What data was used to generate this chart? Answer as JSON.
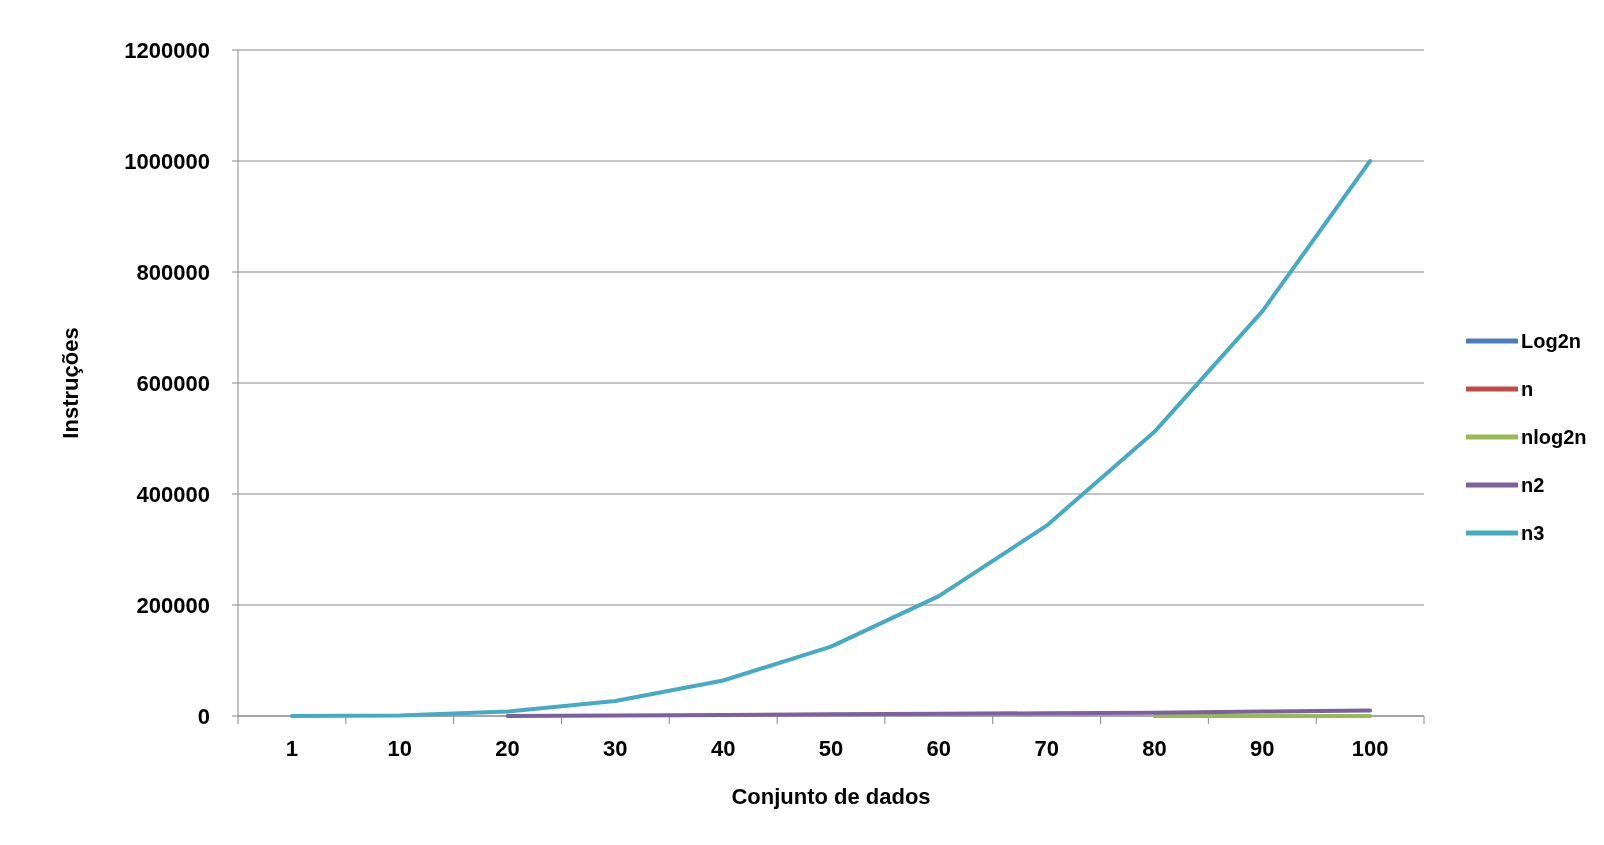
{
  "chart_data": {
    "type": "line",
    "xlabel": "Conjunto de dados",
    "ylabel": "Instruções",
    "categories": [
      "1",
      "10",
      "20",
      "30",
      "40",
      "50",
      "60",
      "70",
      "80",
      "90",
      "100"
    ],
    "series": [
      {
        "name": "Log2n",
        "color": "#4a7ebb",
        "values": [
          null,
          null,
          null,
          null,
          null,
          null,
          null,
          null,
          null,
          null,
          null
        ]
      },
      {
        "name": "n",
        "color": "#be4b48",
        "values": [
          null,
          null,
          null,
          null,
          null,
          null,
          null,
          null,
          null,
          null,
          null
        ]
      },
      {
        "name": "nlog2n",
        "color": "#98b954",
        "values": [
          null,
          null,
          null,
          null,
          null,
          null,
          null,
          null,
          0,
          0,
          0
        ]
      },
      {
        "name": "n2",
        "color": "#7d60a0",
        "values": [
          null,
          null,
          0,
          1000,
          2000,
          3000,
          4000,
          5000,
          6000,
          8000,
          10000
        ]
      },
      {
        "name": "n3",
        "color": "#46aac5",
        "values": [
          0,
          1000,
          8000,
          27000,
          64000,
          125000,
          216000,
          343000,
          512000,
          729000,
          1000000
        ]
      }
    ],
    "ylim": [
      0,
      1200000
    ],
    "yticks": [
      0,
      200000,
      400000,
      600000,
      800000,
      1000000,
      1200000
    ],
    "grid": "y",
    "legend": "right",
    "marker": "none",
    "line_style": "solid"
  }
}
